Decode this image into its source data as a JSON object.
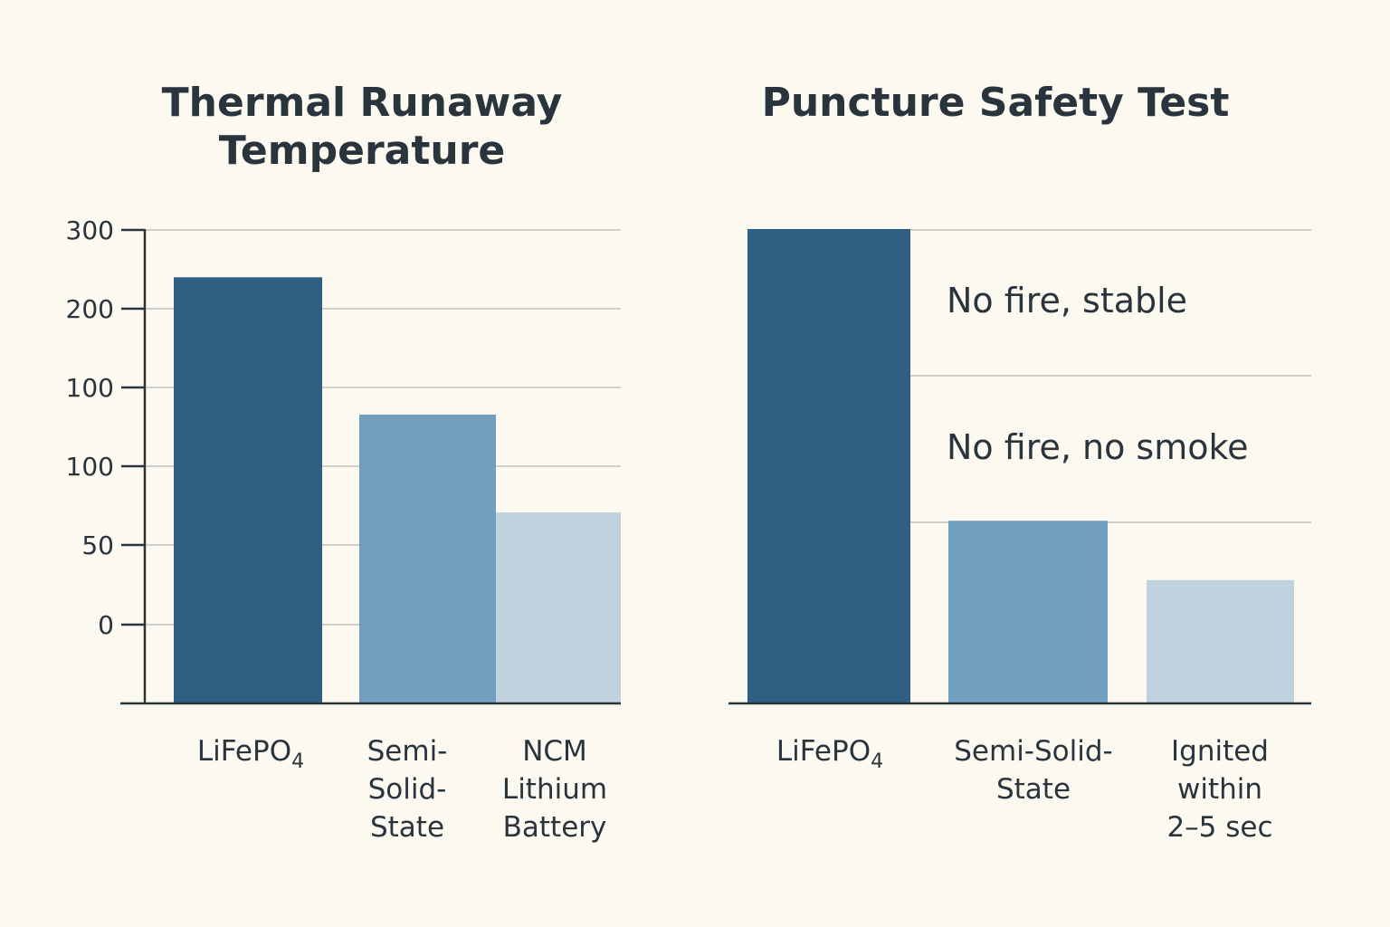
{
  "colors": {
    "dark": "#2f5f83",
    "mid": "#729fbe",
    "light": "#bfd2de"
  },
  "chart_data": [
    {
      "type": "bar",
      "title": [
        "Thermal Runaway",
        "Temperature"
      ],
      "ytick_labels": [
        "300",
        "200",
        "100",
        "100",
        "50",
        "0"
      ],
      "categories": [
        [
          "LiFePO",
          "4",
          ""
        ],
        [
          "Semi-",
          "Solid-",
          "State"
        ],
        [
          "NCM",
          "Lithium",
          "Battery"
        ]
      ],
      "values": [
        270,
        183,
        121
      ],
      "colors": [
        "dark",
        "mid",
        "light"
      ],
      "grid": true
    },
    {
      "type": "bar",
      "title": [
        "Puncture Safety Test"
      ],
      "categories": [
        [
          "LiFePO",
          "4",
          ""
        ],
        [
          "Semi-Solid-",
          "State"
        ],
        [
          "Ignited",
          "within",
          "2–5 sec"
        ]
      ],
      "values": [
        100,
        38.5,
        26
      ],
      "ylim": [
        0,
        100
      ],
      "annotations": [
        "No fire, stable",
        "No fire, no smoke"
      ],
      "colors": [
        "dark",
        "mid",
        "light"
      ],
      "grid": true
    }
  ]
}
